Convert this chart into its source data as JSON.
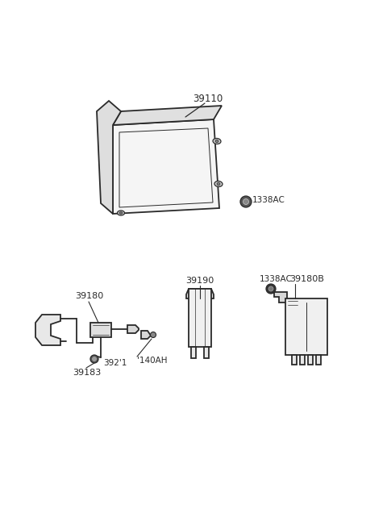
{
  "bg_color": "#ffffff",
  "line_color": "#2a2a2a",
  "text_color": "#2a2a2a",
  "figsize": [
    4.8,
    6.57
  ],
  "dpi": 100,
  "labels": {
    "part1": "39110",
    "part1_bolt": "1338AC",
    "part2": "39180",
    "part2_bolt": "392'1",
    "part3": "39183",
    "part4": "'140AH",
    "part5": "39190",
    "part6": "1338AC",
    "part7": "39180B"
  }
}
